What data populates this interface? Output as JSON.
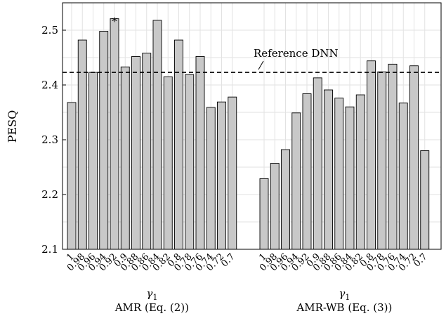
{
  "chart_data": {
    "type": "bar",
    "ylabel": "PESQ",
    "ylim": [
      2.1,
      2.55
    ],
    "yticks": [
      2.1,
      2.2,
      2.3,
      2.4,
      2.5
    ],
    "grid": true,
    "groups": [
      {
        "name": "AMR (Eq. (2))",
        "xlabel": "γ1",
        "categories": [
          "1",
          "0.98",
          "0.96",
          "0.94",
          "0.92",
          "0.9",
          "0.88",
          "0.86",
          "0.84",
          "0.82",
          "0.8",
          "0.78",
          "0.76",
          "0.74",
          "0.72",
          "0.7"
        ],
        "values": [
          2.368,
          2.482,
          2.423,
          2.498,
          2.521,
          2.433,
          2.452,
          2.458,
          2.518,
          2.415,
          2.482,
          2.419,
          2.452,
          2.359,
          2.369,
          2.378
        ]
      },
      {
        "name": "AMR-WB (Eq. (3))",
        "xlabel": "γ1",
        "categories": [
          "1",
          "0.98",
          "0.96",
          "0.94",
          "0.92",
          "0.9",
          "0.88",
          "0.86",
          "0.84",
          "0.82",
          "0.8",
          "0.78",
          "0.76",
          "0.74",
          "0.72",
          "0.7"
        ],
        "values": [
          2.229,
          2.257,
          2.282,
          2.349,
          2.384,
          2.413,
          2.391,
          2.376,
          2.36,
          2.382,
          2.444,
          2.424,
          2.438,
          2.367,
          2.435,
          2.28
        ]
      }
    ],
    "reference": {
      "label": "Reference DNN",
      "value": 2.423
    },
    "best_marker": {
      "symbol": "*",
      "group": 0,
      "index": 4
    }
  }
}
